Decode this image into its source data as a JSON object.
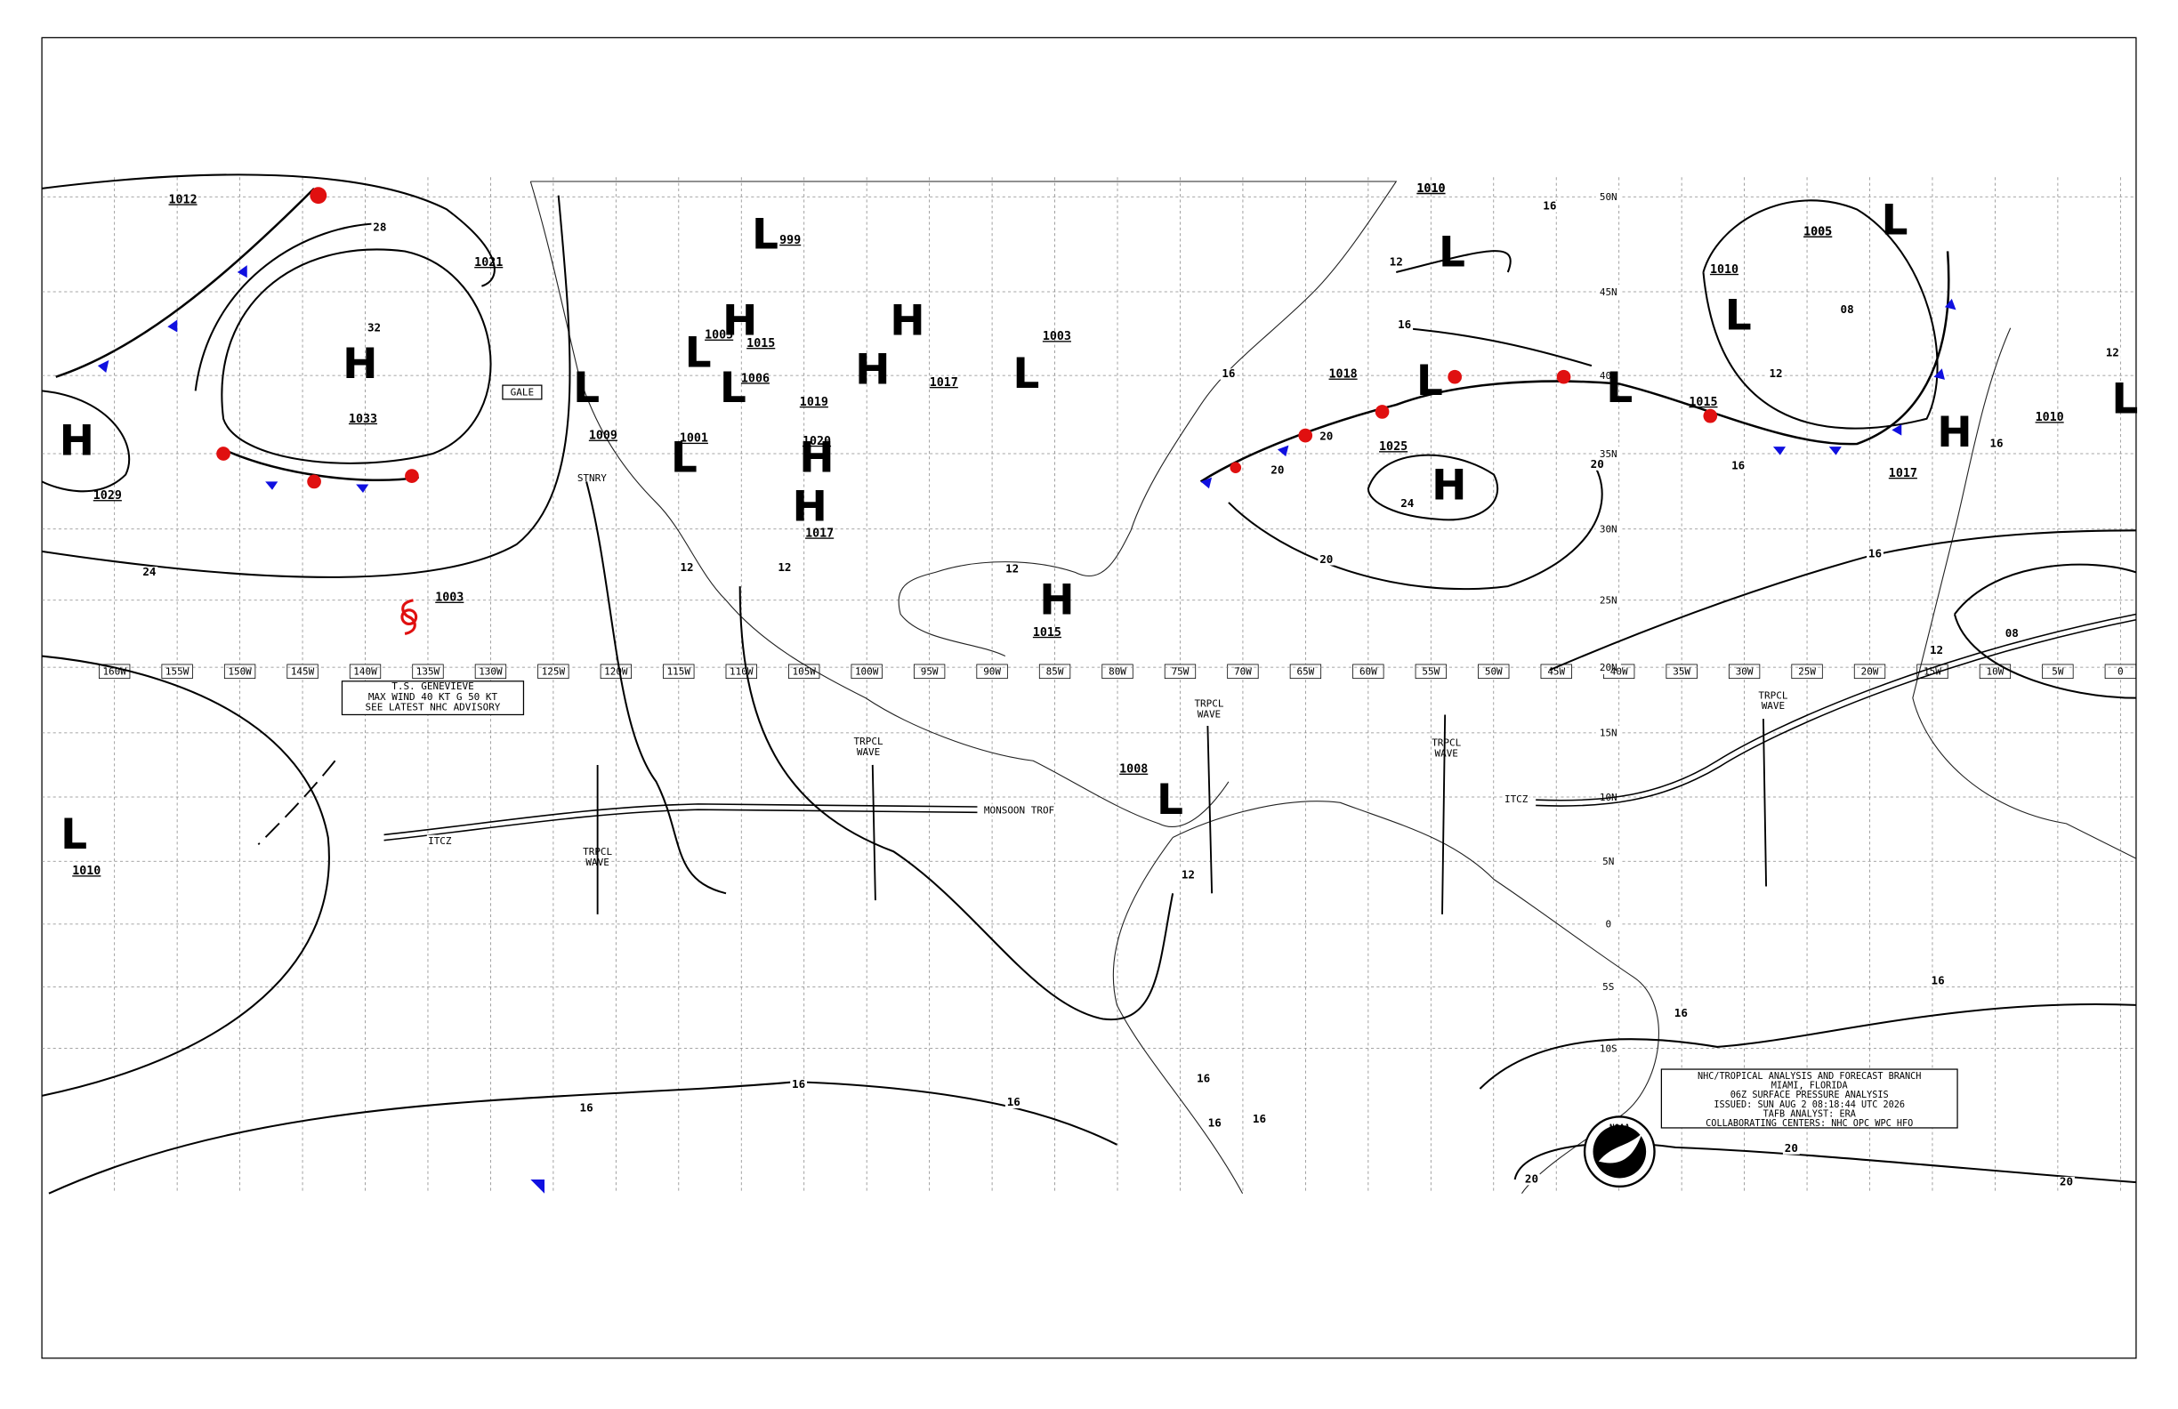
{
  "longitudes": [
    "160W",
    "155W",
    "150W",
    "145W",
    "140W",
    "135W",
    "130W",
    "125W",
    "120W",
    "115W",
    "110W",
    "105W",
    "100W",
    "95W",
    "90W",
    "85W",
    "80W",
    "75W",
    "70W",
    "65W",
    "60W",
    "55W",
    "50W",
    "45W",
    "40W",
    "35W",
    "30W",
    "25W",
    "20W",
    "15W",
    "10W",
    "5W",
    "0"
  ],
  "latitudes": [
    "50N",
    "45N",
    "40N",
    "35N",
    "30N",
    "25N",
    "20N",
    "15N",
    "10N",
    "5N",
    "0",
    "5S",
    "10S"
  ],
  "pressure_centers": [
    {
      "symbol": "H",
      "color": "#1010e0",
      "pressure": "1033"
    },
    {
      "symbol": "H",
      "color": "#1010e0",
      "pressure": "1029"
    },
    {
      "symbol": "H",
      "color": "#1010e0",
      "pressure": "1025"
    },
    {
      "symbol": "H",
      "color": "#1010e0",
      "pressure": "1015"
    },
    {
      "symbol": "H",
      "color": "#1010e0",
      "pressure": "1017"
    },
    {
      "symbol": "H",
      "color": "#1010e0",
      "pressure": "1017"
    },
    {
      "symbol": "H",
      "color": "#1010e0",
      "pressure": "1017"
    },
    {
      "symbol": "H",
      "color": "#1010e0",
      "pressure": "1019"
    },
    {
      "symbol": "H",
      "color": "#1010e0",
      "pressure": "1015"
    },
    {
      "symbol": "H",
      "color": "#1010e0",
      "pressure": "1020"
    },
    {
      "symbol": "L",
      "color": "#e01010",
      "pressure": "1010"
    },
    {
      "symbol": "L",
      "color": "#e01010",
      "pressure": "999"
    },
    {
      "symbol": "L",
      "color": "#e01010",
      "pressure": "1010"
    },
    {
      "symbol": "L",
      "color": "#e01010",
      "pressure": "1010"
    },
    {
      "symbol": "L",
      "color": "#e01010",
      "pressure": "1005"
    },
    {
      "symbol": "L",
      "color": "#e01010",
      "pressure": "1015"
    },
    {
      "symbol": "L",
      "color": "#e01010",
      "pressure": "1010"
    },
    {
      "symbol": "L",
      "color": "#e01010",
      "pressure": "1005"
    },
    {
      "symbol": "L",
      "color": "#e01010",
      "pressure": "1009"
    },
    {
      "symbol": "L",
      "color": "#e01010",
      "pressure": "1003"
    },
    {
      "symbol": "L",
      "color": "#e01010",
      "pressure": "1018"
    },
    {
      "symbol": "L",
      "color": "#e01010",
      "pressure": "1006"
    },
    {
      "symbol": "L",
      "color": "#e01010",
      "pressure": "1001"
    },
    {
      "symbol": "L",
      "color": "#000000",
      "pressure": "1008"
    }
  ],
  "pressure_labels": [
    "1012",
    "1021",
    "1005",
    "1010"
  ],
  "isobar_labels": [
    "28",
    "32",
    "24",
    "24",
    "20",
    "20",
    "20",
    "20",
    "16",
    "16",
    "16",
    "16",
    "16",
    "16",
    "16",
    "16",
    "16",
    "16",
    "16",
    "16",
    "16",
    "16",
    "12",
    "12",
    "12",
    "12",
    "12",
    "12",
    "12",
    "12",
    "08",
    "08",
    "20",
    "20",
    "20"
  ],
  "annotations": {
    "storm_pressure": "1003",
    "storm_box": [
      "T.S. GENEVIEVE",
      "MAX WIND 40 KT G 50 KT",
      "SEE LATEST NHC ADVISORY"
    ],
    "tropical_waves": [
      [
        "TRPCL",
        "WAVE"
      ],
      [
        "TRPCL",
        "WAVE"
      ],
      [
        "TRPCL",
        "WAVE"
      ],
      [
        "TRPCL",
        "WAVE"
      ],
      [
        "TRPCL",
        "WAVE"
      ]
    ],
    "itcz": [
      "ITCZ",
      "ITCZ"
    ],
    "monsoon_trough": "MONSOON TROF",
    "stationary": "STNRY",
    "gale": "GALE"
  },
  "info_box": [
    "NHC/TROPICAL ANALYSIS AND FORECAST BRANCH",
    "MIAMI, FLORIDA",
    "06Z SURFACE PRESSURE ANALYSIS",
    "ISSUED: SUN AUG 2 08:18:44 UTC 2026",
    "TAFB ANALYST: ERA",
    "COLLABORATING CENTERS: NHC OPC WPC HFO"
  ],
  "logo": "NOAA"
}
